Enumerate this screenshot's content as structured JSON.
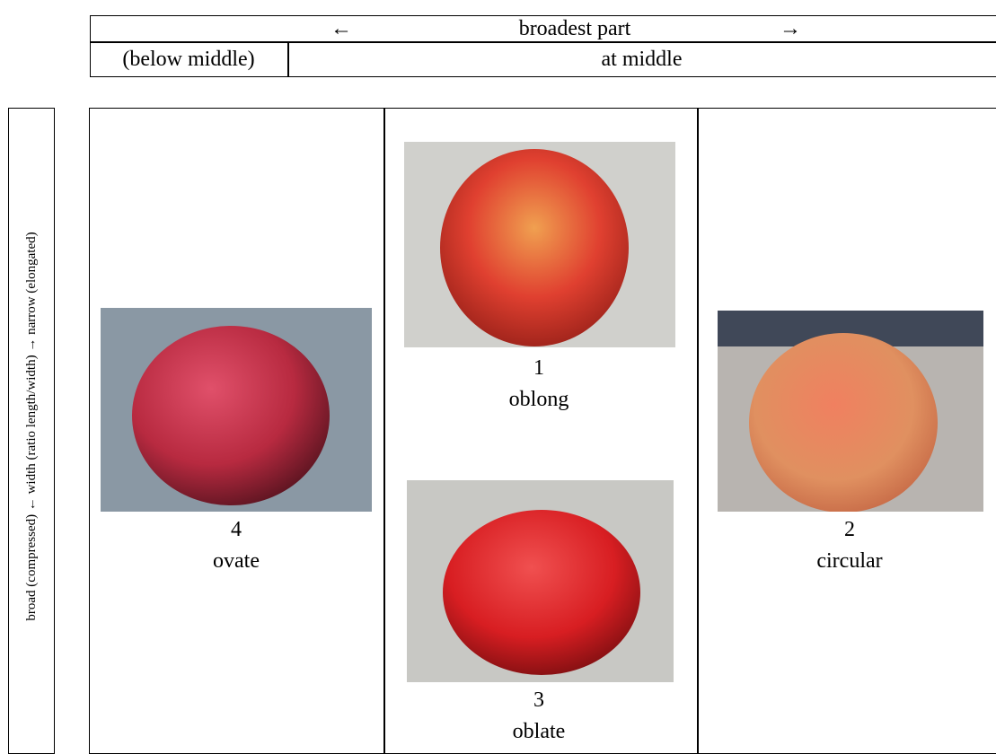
{
  "header": {
    "left_arrow": "←",
    "title": "broadest part",
    "right_arrow": "→",
    "left_cell": "(below middle)",
    "right_cell": "at middle"
  },
  "side_label": "broad (compressed) ← width (ratio length/width) → narrow (elongated)",
  "items": [
    {
      "number": "4",
      "name": "ovate"
    },
    {
      "number": "1",
      "name": "oblong"
    },
    {
      "number": "3",
      "name": "oblate"
    },
    {
      "number": "2",
      "name": "circular"
    }
  ]
}
